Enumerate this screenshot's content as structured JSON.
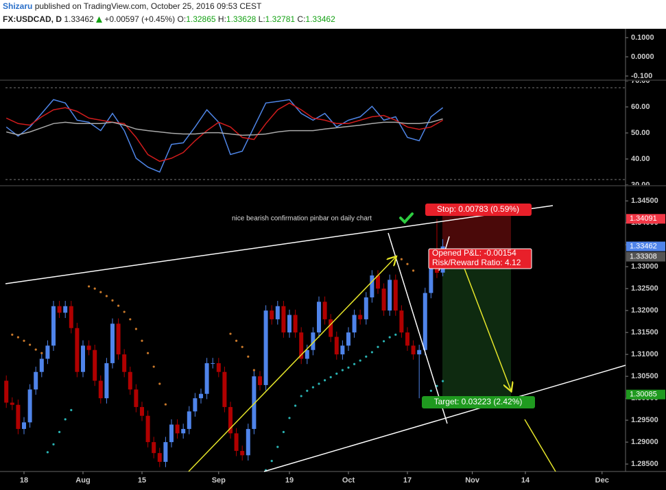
{
  "header": {
    "author": "Shizaru",
    "published": "published on TradingView.com, October 25, 2016 09:53 CEST",
    "symbol": "FX:USDCAD, D",
    "change": "+0.00597 (+0.45%)",
    "o": "O:",
    "h": "H:",
    "l": "L:",
    "c": "C:"
  },
  "chart_data": [
    {
      "type": "candlestick",
      "up_color": "#4f84ea",
      "down_color": "#b00000",
      "sar_above_color": "#c8782a",
      "sar_below_color": "#2ab3b3",
      "xlim": [
        -0.14,
        104.98
      ],
      "xticks": [
        {
          "value": 3,
          "label": "18"
        },
        {
          "value": 13,
          "label": "Aug"
        },
        {
          "value": 23,
          "label": "15"
        },
        {
          "value": 36,
          "label": "Sep"
        },
        {
          "value": 48,
          "label": "19"
        },
        {
          "value": 58,
          "label": "Oct"
        },
        {
          "value": 68,
          "label": "17"
        },
        {
          "value": 79,
          "label": "Nov"
        },
        {
          "value": 88,
          "label": "14"
        },
        {
          "value": 101,
          "label": "Dec"
        }
      ],
      "ylim": [
        1.2833,
        1.3483
      ],
      "yticks": [
        {
          "value": 1.345,
          "label": "1.34500"
        },
        {
          "value": 1.34,
          "label": "1.34000"
        },
        {
          "value": 1.335,
          "label": "1.33500"
        },
        {
          "value": 1.33,
          "label": "1.33000"
        },
        {
          "value": 1.325,
          "label": "1.32500"
        },
        {
          "value": 1.32,
          "label": "1.32000"
        },
        {
          "value": 1.315,
          "label": "1.31500"
        },
        {
          "value": 1.31,
          "label": "1.31000"
        },
        {
          "value": 1.305,
          "label": "1.30500"
        },
        {
          "value": 1.3,
          "label": "1.30000"
        },
        {
          "value": 1.295,
          "label": "1.29500"
        },
        {
          "value": 1.29,
          "label": "1.29000"
        },
        {
          "value": 1.285,
          "label": "1.28500"
        }
      ],
      "x": [
        0,
        1,
        2,
        3,
        4,
        5,
        6,
        7,
        8,
        9,
        10,
        11,
        12,
        13,
        14,
        15,
        16,
        17,
        18,
        19,
        20,
        21,
        22,
        23,
        24,
        25,
        26,
        27,
        28,
        29,
        30,
        31,
        32,
        33,
        34,
        35,
        36,
        37,
        38,
        39,
        40,
        41,
        42,
        43,
        44,
        45,
        46,
        47,
        48,
        49,
        50,
        51,
        52,
        53,
        54,
        55,
        56,
        57,
        58,
        59,
        60,
        61,
        62,
        63,
        64,
        65,
        66,
        67,
        68,
        69,
        70,
        71,
        72,
        73,
        74
      ],
      "open": [
        1.304,
        1.299,
        1.2985,
        1.293,
        1.2945,
        1.302,
        1.306,
        1.309,
        1.312,
        1.321,
        1.3195,
        1.321,
        1.316,
        1.306,
        1.312,
        1.311,
        1.304,
        1.3,
        1.308,
        1.317,
        1.31,
        1.306,
        1.302,
        1.298,
        1.296,
        1.29,
        1.2875,
        1.2855,
        1.29,
        1.294,
        1.292,
        1.293,
        1.297,
        1.3,
        1.301,
        1.308,
        1.308,
        1.306,
        1.298,
        1.292,
        1.288,
        1.287,
        1.293,
        1.305,
        1.303,
        1.32,
        1.318,
        1.321,
        1.315,
        1.319,
        1.315,
        1.309,
        1.311,
        1.315,
        1.322,
        1.318,
        1.314,
        1.31,
        1.312,
        1.315,
        1.319,
        1.318,
        1.323,
        1.328,
        1.325,
        1.32,
        1.327,
        1.32,
        1.315,
        1.312,
        1.31,
        1.311,
        1.324,
        1.33,
        1.32865
      ],
      "high": [
        1.3052,
        1.3002,
        1.2997,
        1.2957,
        1.3032,
        1.3072,
        1.3102,
        1.3132,
        1.3222,
        1.3222,
        1.3222,
        1.3222,
        1.3172,
        1.3132,
        1.3132,
        1.3122,
        1.3052,
        1.3092,
        1.3182,
        1.3182,
        1.3112,
        1.3072,
        1.3032,
        1.2992,
        1.2972,
        1.2912,
        1.2887,
        1.2912,
        1.2952,
        1.2952,
        1.2942,
        1.2982,
        1.3012,
        1.3022,
        1.3092,
        1.3092,
        1.3092,
        1.3072,
        1.2992,
        1.2932,
        1.2892,
        1.2942,
        1.3062,
        1.3062,
        1.3212,
        1.3212,
        1.3222,
        1.3222,
        1.3202,
        1.3202,
        1.3162,
        1.3122,
        1.3162,
        1.3232,
        1.3232,
        1.3192,
        1.3152,
        1.3132,
        1.3162,
        1.3202,
        1.3202,
        1.3242,
        1.3292,
        1.3292,
        1.3262,
        1.3282,
        1.3282,
        1.3212,
        1.3162,
        1.3132,
        1.3122,
        1.3252,
        1.3312,
        1.3409,
        1.33628
      ],
      "low": [
        1.2978,
        1.2973,
        1.2918,
        1.2918,
        1.2933,
        1.3008,
        1.3048,
        1.3078,
        1.3108,
        1.3183,
        1.3183,
        1.3148,
        1.3048,
        1.3048,
        1.3098,
        1.3028,
        1.2988,
        1.2988,
        1.3068,
        1.3088,
        1.3048,
        1.3008,
        1.2968,
        1.2948,
        1.2888,
        1.2863,
        1.2843,
        1.2843,
        1.2888,
        1.2908,
        1.2908,
        1.2918,
        1.2958,
        1.2988,
        1.2998,
        1.3068,
        1.3048,
        1.2968,
        1.2908,
        1.2868,
        1.2858,
        1.2858,
        1.2918,
        1.3018,
        1.3018,
        1.3168,
        1.3168,
        1.3138,
        1.3138,
        1.3138,
        1.3078,
        1.3078,
        1.3098,
        1.3138,
        1.3168,
        1.3128,
        1.3088,
        1.3088,
        1.3108,
        1.3138,
        1.3168,
        1.3168,
        1.3218,
        1.3238,
        1.3188,
        1.3188,
        1.3188,
        1.3138,
        1.3108,
        1.3088,
        1.3,
        1.3098,
        1.3228,
        1.3274,
        1.32781
      ],
      "close": [
        1.299,
        1.2985,
        1.293,
        1.2945,
        1.302,
        1.306,
        1.309,
        1.312,
        1.321,
        1.3195,
        1.321,
        1.316,
        1.306,
        1.312,
        1.311,
        1.304,
        1.3,
        1.308,
        1.317,
        1.31,
        1.306,
        1.302,
        1.298,
        1.296,
        1.29,
        1.2875,
        1.2855,
        1.29,
        1.294,
        1.292,
        1.293,
        1.297,
        1.3,
        1.301,
        1.308,
        1.308,
        1.306,
        1.298,
        1.292,
        1.288,
        1.287,
        1.293,
        1.305,
        1.303,
        1.32,
        1.318,
        1.321,
        1.315,
        1.319,
        1.315,
        1.309,
        1.311,
        1.315,
        1.322,
        1.318,
        1.314,
        1.31,
        1.312,
        1.315,
        1.319,
        1.318,
        1.323,
        1.328,
        1.325,
        1.32,
        1.327,
        1.32,
        1.315,
        1.312,
        1.31,
        1.311,
        1.324,
        1.33,
        1.3286,
        1.33462
      ],
      "sar_above": [
        null,
        1.3145,
        1.3139,
        1.3131,
        1.3122,
        1.3111,
        1.3103,
        null,
        null,
        null,
        null,
        null,
        null,
        null,
        1.3255,
        1.325,
        1.3242,
        1.3233,
        1.3223,
        1.3211,
        1.3197,
        1.318,
        1.3158,
        1.3131,
        1.3103,
        1.3072,
        1.3033,
        1.2986,
        null,
        null,
        null,
        null,
        null,
        null,
        null,
        null,
        null,
        null,
        1.3147,
        1.3131,
        1.3117,
        1.3095,
        1.3064,
        null,
        null,
        null,
        null,
        null,
        null,
        null,
        null,
        null,
        null,
        null,
        null,
        null,
        null,
        null,
        null,
        null,
        null,
        null,
        null,
        null,
        null,
        null,
        null,
        1.3317,
        1.3306,
        1.3291,
        null,
        null,
        null,
        null,
        null
      ],
      "sar_below": [
        null,
        null,
        null,
        null,
        null,
        null,
        null,
        1.2877,
        1.2895,
        1.2923,
        1.2952,
        1.2973,
        null,
        null,
        null,
        null,
        null,
        null,
        null,
        null,
        null,
        null,
        null,
        null,
        null,
        null,
        null,
        null,
        null,
        null,
        null,
        null,
        null,
        null,
        null,
        null,
        null,
        null,
        null,
        null,
        null,
        null,
        null,
        null,
        1.2836,
        1.2857,
        1.2889,
        1.2923,
        1.2955,
        1.2983,
        1.3005,
        1.3017,
        1.3025,
        1.3033,
        1.3041,
        1.3048,
        1.3056,
        1.3064,
        1.307,
        1.3078,
        1.3086,
        1.3095,
        1.3105,
        1.3117,
        1.313,
        1.3139,
        1.3145,
        null,
        null,
        null,
        null,
        1.3002,
        1.3017,
        1.3028,
        1.3039
      ],
      "price_markers": [
        {
          "value": 1.34091,
          "color": "#f23645"
        },
        {
          "value": 1.33462,
          "color": "#4f84ea"
        },
        {
          "value": 1.33308,
          "color": "#555555"
        },
        {
          "value": 1.30085,
          "color": "#1f9a1f"
        }
      ],
      "annotations": {
        "note": "nice bearish confirmation pinbar on daily chart",
        "stop": "Stop: 0.00783 (0.59%)",
        "pnl": "Opened P&L: -0.00154",
        "rr": "Risk/Reward Ratio: 4.12",
        "target": "Target: 0.03223 (2.42%)"
      }
    },
    {
      "type": "line",
      "xlim": [
        -0.14,
        104.98
      ],
      "ylim": [
        30,
        70
      ],
      "yticks": [
        {
          "value": 30,
          "label": "30.00"
        },
        {
          "value": 40,
          "label": "40.00"
        },
        {
          "value": 50,
          "label": "50.00"
        },
        {
          "value": 60,
          "label": "60.00"
        },
        {
          "value": 70,
          "label": "70.00"
        }
      ],
      "x": [
        0,
        2,
        4,
        6,
        8,
        10,
        12,
        14,
        16,
        18,
        20,
        22,
        24,
        26,
        28,
        30,
        32,
        34,
        36,
        38,
        40,
        42,
        44,
        46,
        48,
        50,
        52,
        54,
        56,
        58,
        60,
        62,
        64,
        66,
        68,
        70,
        72,
        74
      ],
      "series": [
        {
          "color": "#4f86e8",
          "values": [
            52.3,
            48.8,
            52.3,
            57.5,
            62.8,
            61.5,
            54.9,
            54.1,
            50.9,
            57.5,
            50.9,
            40.3,
            36.9,
            35.0,
            45.6,
            46.2,
            52.3,
            58.9,
            54.1,
            41.7,
            43.0,
            52.3,
            61.5,
            62.1,
            62.8,
            57.5,
            54.9,
            57.5,
            52.3,
            54.9,
            56.2,
            60.2,
            54.9,
            56.2,
            48.3,
            47.0,
            56.2,
            59.7
          ]
        },
        {
          "color": "#d21c1c",
          "values": [
            55.7,
            53.6,
            53.0,
            56.2,
            58.9,
            59.7,
            58.3,
            55.7,
            54.9,
            54.1,
            53.6,
            48.3,
            41.7,
            39.1,
            40.3,
            42.5,
            47.0,
            50.9,
            54.1,
            52.3,
            48.3,
            47.5,
            53.6,
            58.9,
            61.5,
            58.9,
            55.7,
            54.9,
            53.6,
            53.6,
            54.9,
            56.2,
            56.7,
            54.9,
            52.3,
            51.4,
            52.3,
            54.9
          ]
        },
        {
          "color": "#aaaaaa",
          "values": [
            50.4,
            49.3,
            50.4,
            52.0,
            53.6,
            54.1,
            53.6,
            53.6,
            53.6,
            54.1,
            53.0,
            51.5,
            50.9,
            50.4,
            49.9,
            49.6,
            49.6,
            50.1,
            50.1,
            49.6,
            49.1,
            49.3,
            49.6,
            50.4,
            50.9,
            50.9,
            50.9,
            51.5,
            52.0,
            52.5,
            53.0,
            53.6,
            54.1,
            54.1,
            53.6,
            53.6,
            54.1,
            55.4
          ]
        }
      ]
    },
    {
      "type": "indicator",
      "ylim": [
        -0.118,
        0.139
      ],
      "yticks": [
        {
          "value": 0.1,
          "label": "0.1000"
        },
        {
          "value": 0,
          "label": "0.0000"
        },
        {
          "value": -0.1,
          "label": "-0.100"
        }
      ]
    }
  ]
}
